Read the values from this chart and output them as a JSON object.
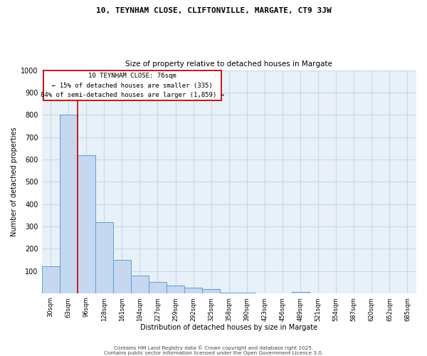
{
  "title_line1": "10, TEYNHAM CLOSE, CLIFTONVILLE, MARGATE, CT9 3JW",
  "title_line2": "Size of property relative to detached houses in Margate",
  "xlabel": "Distribution of detached houses by size in Margate",
  "ylabel": "Number of detached properties",
  "categories": [
    "30sqm",
    "63sqm",
    "96sqm",
    "128sqm",
    "161sqm",
    "194sqm",
    "227sqm",
    "259sqm",
    "292sqm",
    "325sqm",
    "358sqm",
    "390sqm",
    "423sqm",
    "456sqm",
    "489sqm",
    "521sqm",
    "554sqm",
    "587sqm",
    "620sqm",
    "652sqm",
    "685sqm"
  ],
  "values": [
    120,
    800,
    620,
    320,
    150,
    80,
    50,
    35,
    25,
    20,
    5,
    2,
    1,
    0,
    8,
    0,
    0,
    0,
    0,
    0,
    0
  ],
  "bar_color": "#c5d8f0",
  "bar_edge_color": "#5a9fd4",
  "grid_color": "#c8d8e8",
  "background_color": "#e8f0f8",
  "annotation_box_color": "#cc0000",
  "property_line_color": "#cc0000",
  "annotation_text_line1": "10 TEYNHAM CLOSE: 76sqm",
  "annotation_text_line2": "← 15% of detached houses are smaller (335)",
  "annotation_text_line3": "84% of semi-detached houses are larger (1,859) →",
  "ylim": [
    0,
    1000
  ],
  "yticks": [
    0,
    100,
    200,
    300,
    400,
    500,
    600,
    700,
    800,
    900,
    1000
  ],
  "footer_line1": "Contains HM Land Registry data © Crown copyright and database right 2025.",
  "footer_line2": "Contains public sector information licensed under the Open Government Licence 3.0."
}
